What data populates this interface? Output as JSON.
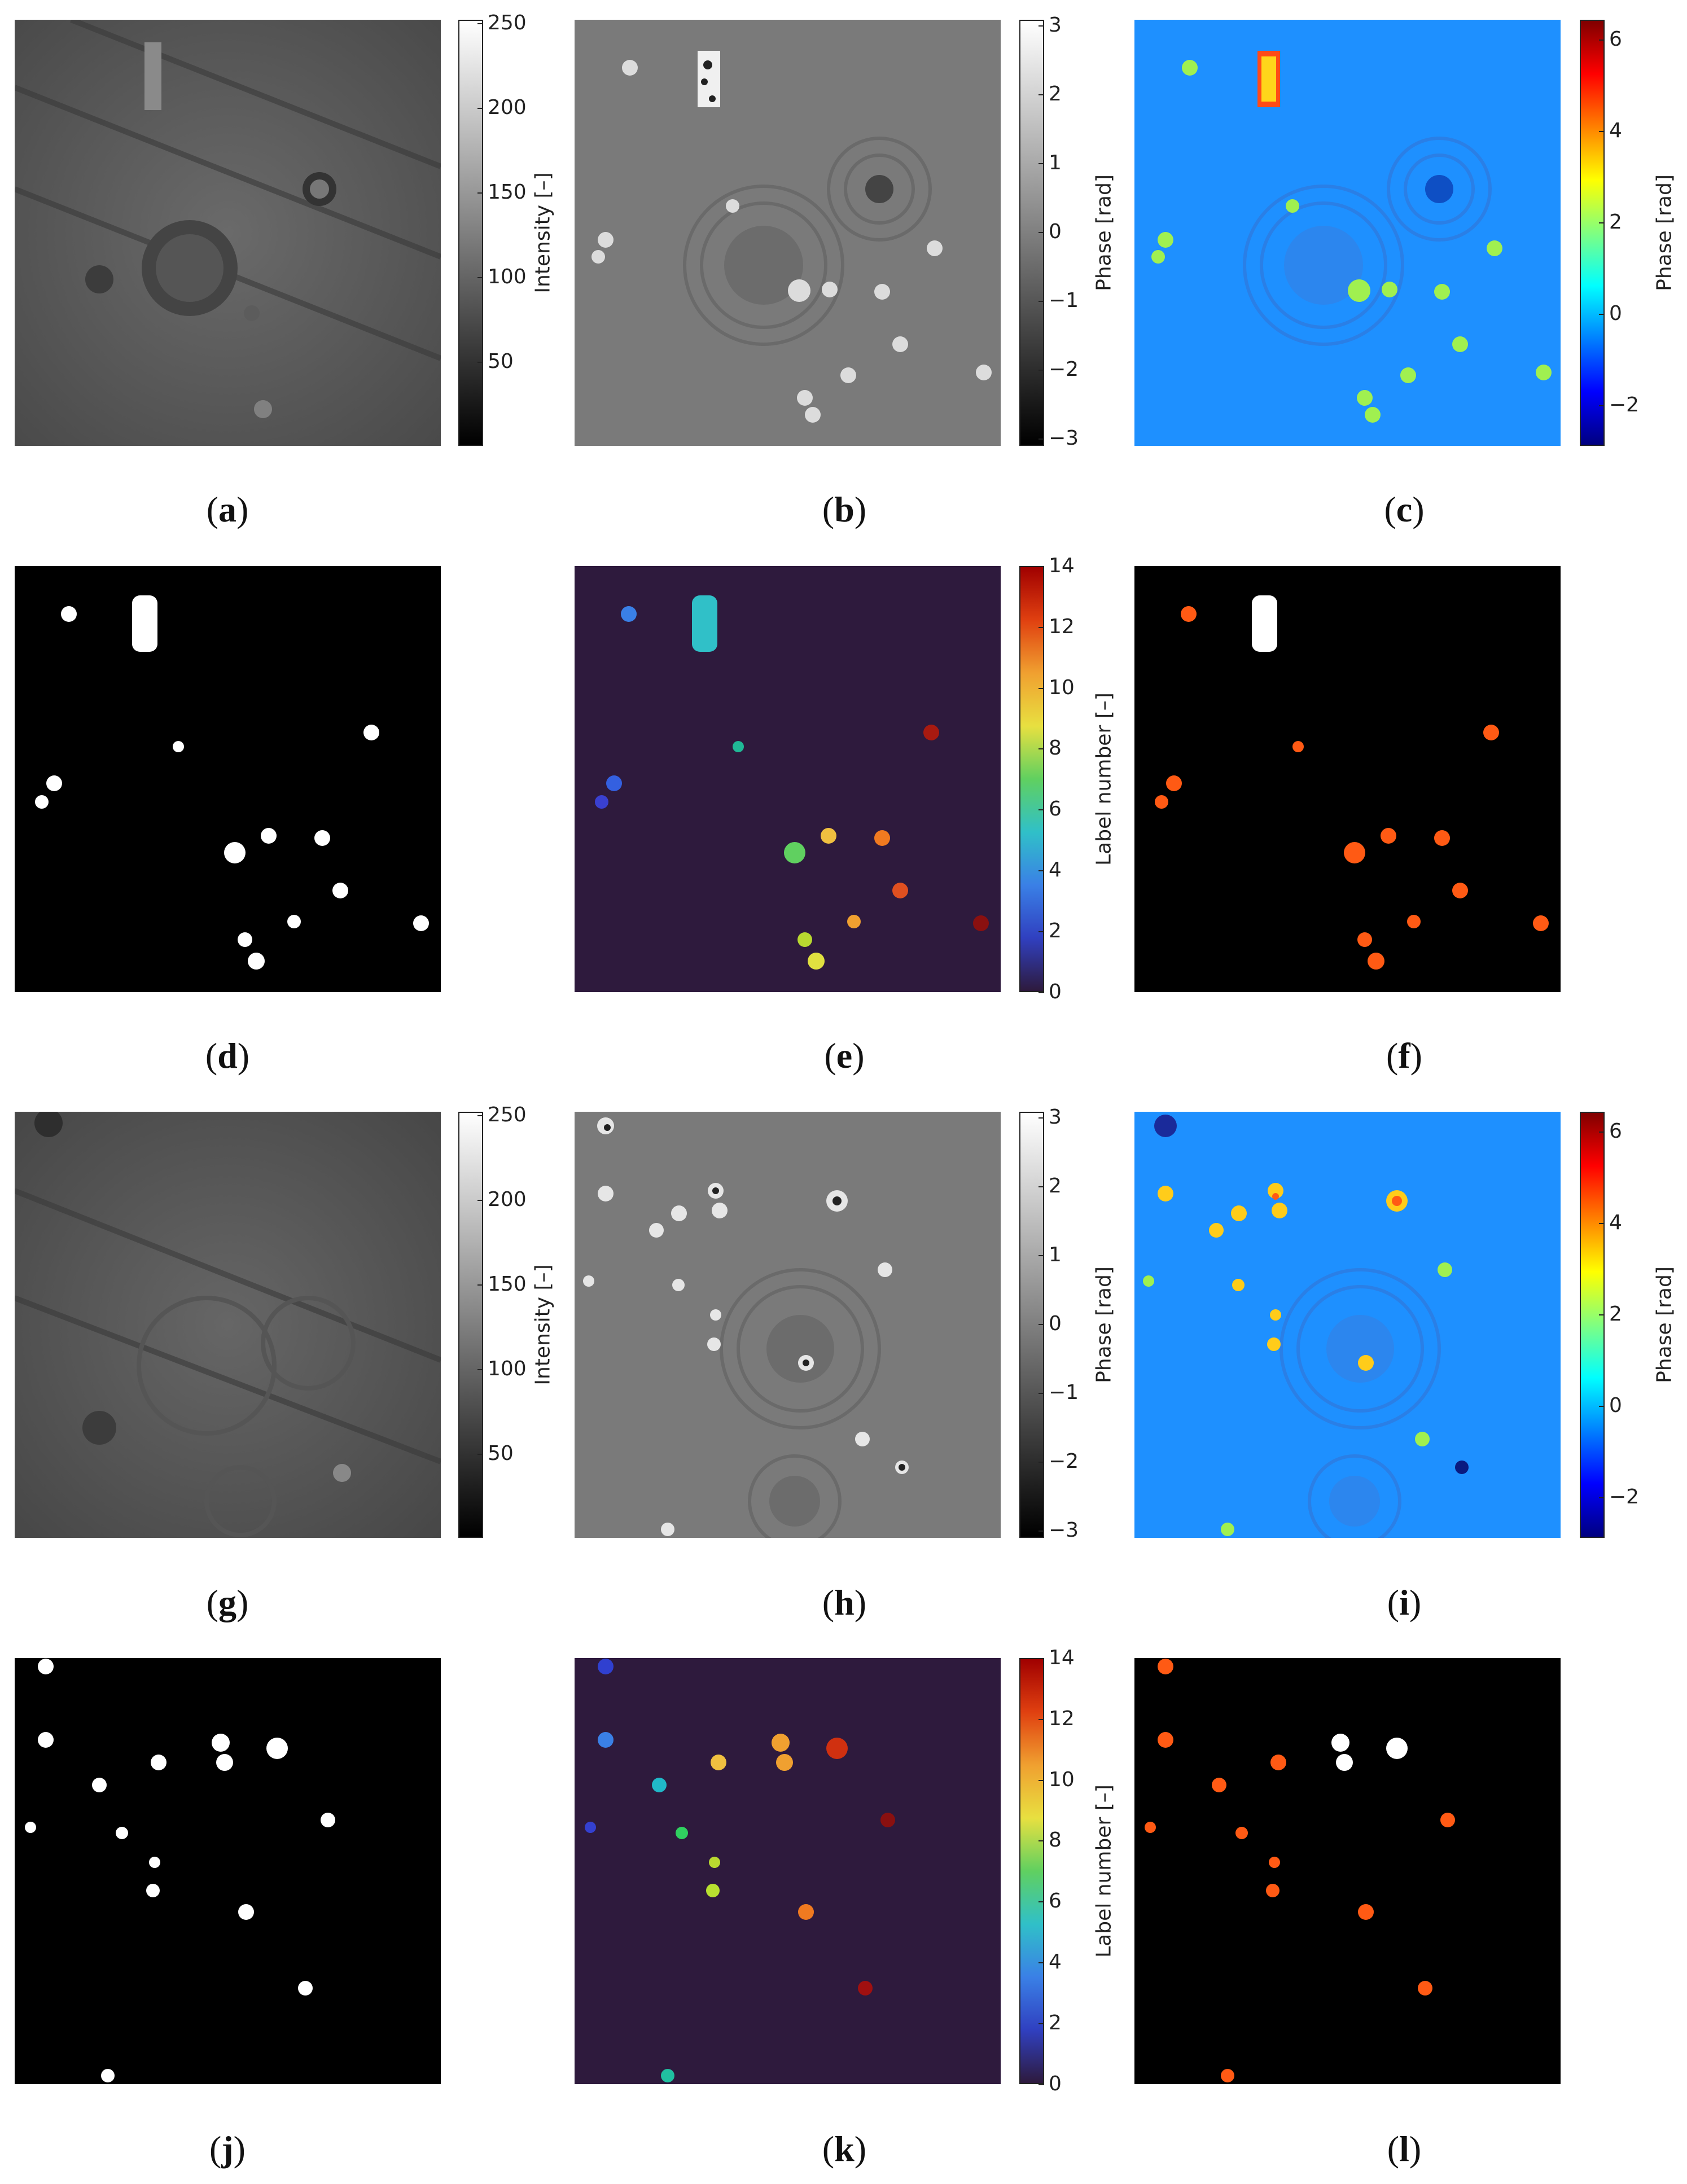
{
  "captions": {
    "a": "a",
    "b": "b",
    "c": "c",
    "d": "d",
    "e": "e",
    "f": "f",
    "g": "g",
    "h": "h",
    "i": "i",
    "j": "j",
    "k": "k",
    "l": "l"
  },
  "colorbars": {
    "intensity": {
      "title": "Intensity [–]",
      "ticks": [
        "250",
        "200",
        "150",
        "100",
        "50"
      ]
    },
    "phase_gray": {
      "title": "Phase [rad]",
      "ticks": [
        "3",
        "2",
        "1",
        "0",
        "−1",
        "−2",
        "−3"
      ]
    },
    "phase_jet": {
      "title": "Phase [rad]",
      "ticks": [
        "6",
        "4",
        "2",
        "0",
        "−2"
      ]
    },
    "label": {
      "title": "Label number [–]",
      "ticks": [
        "14",
        "12",
        "10",
        "8",
        "6",
        "4",
        "2",
        "0"
      ]
    }
  },
  "colors": {
    "binary_background": "#000000",
    "binary_object": "#ffffff",
    "label_background": "#2e1a3d",
    "overlay_object": "#ff5a14",
    "jet_background": "#1e90ff",
    "gray_background": "#7a7a7a"
  }
}
